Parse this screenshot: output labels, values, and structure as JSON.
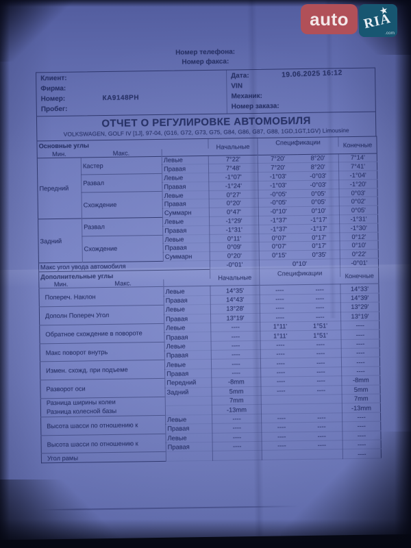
{
  "watermark": {
    "auto_text": "auto",
    "ria_text": "RIA",
    "com_text": ".com",
    "star": "★",
    "auto_bg": "#b15058",
    "ria_bg": "#175671"
  },
  "top_lines": {
    "phone_label": "Номер телефона:",
    "fax_label": "Номер факса:"
  },
  "info": {
    "left": [
      {
        "label": "Клиент:",
        "value": ""
      },
      {
        "label": "Фирма:",
        "value": ""
      },
      {
        "label": "Номер:",
        "value": "КА9148РН"
      },
      {
        "label": "Пробег:",
        "value": ""
      }
    ],
    "right": [
      {
        "label": "Дата:",
        "value": "19.06.2025  16:12"
      },
      {
        "label": "VIN",
        "value": ""
      },
      {
        "label": "Механик:",
        "value": ""
      },
      {
        "label": "Номер заказа:",
        "value": ""
      }
    ]
  },
  "title": "ОТЧЕТ О РЕГУЛИРОВКЕ АВТОМОБИЛЯ",
  "subtitle": "VOLKSWAGEN, GOLF IV [1J], 97-04, (G16, G72, G73, G75, G84, G86, G87, G88, 1GD,1GT,1GV) Limousine",
  "columns": {
    "initial": "Начальные",
    "spec": "Спецификации",
    "min": "Мин.",
    "max": "Макс.",
    "final": "Конечные"
  },
  "main_section": {
    "header": "Основные углы",
    "groups": [
      {
        "name": "Передний",
        "params": [
          {
            "name": "Кастер",
            "rows": [
              {
                "side": "Левые",
                "initial": "7°22'",
                "min": "7°20'",
                "max": "8°20'",
                "final": "7°14'"
              },
              {
                "side": "Правая",
                "initial": "7°48'",
                "min": "7°20'",
                "max": "8°20'",
                "final": "7°41'"
              }
            ]
          },
          {
            "name": "Развал",
            "rows": [
              {
                "side": "Левые",
                "initial": "-1°07'",
                "min": "-1°03'",
                "max": "-0°03'",
                "final": "-1°04'"
              },
              {
                "side": "Правая",
                "initial": "-1°24'",
                "min": "-1°03'",
                "max": "-0°03'",
                "final": "-1°20'"
              }
            ]
          },
          {
            "name": "Схождение",
            "rows": [
              {
                "side": "Левые",
                "initial": "0°27'",
                "min": "-0°05'",
                "max": "0°05'",
                "final": "0°03'"
              },
              {
                "side": "Правая",
                "initial": "0°20'",
                "min": "-0°05'",
                "max": "0°05'",
                "final": "0°02'"
              },
              {
                "side": "Суммарн",
                "initial": "0°47'",
                "min": "-0°10'",
                "max": "0°10'",
                "final": "0°05'"
              }
            ]
          }
        ]
      },
      {
        "name": "Задний",
        "params": [
          {
            "name": "Развал",
            "rows": [
              {
                "side": "Левые",
                "initial": "-1°29'",
                "min": "-1°37'",
                "max": "-1°17'",
                "final": "-1°31'"
              },
              {
                "side": "Правая",
                "initial": "-1°31'",
                "min": "-1°37'",
                "max": "-1°17'",
                "final": "-1°30'"
              }
            ]
          },
          {
            "name": "Схождение",
            "rows": [
              {
                "side": "Левые",
                "initial": "0°11'",
                "min": "0°07'",
                "max": "0°17'",
                "final": "0°12'"
              },
              {
                "side": "Правая",
                "initial": "0°09'",
                "min": "0°07'",
                "max": "0°17'",
                "final": "0°10'"
              },
              {
                "side": "Суммарн",
                "initial": "0°20'",
                "min": "0°15'",
                "max": "0°35'",
                "final": "0°22'"
              }
            ]
          }
        ]
      }
    ],
    "footer": {
      "label": "Макс угол увода автомобиля",
      "initial": "-0°01'",
      "spec": "0°10'",
      "final": "-0°01'"
    }
  },
  "extra_section": {
    "header": "Дополнительные углы",
    "params": [
      {
        "name": "Попереч. Наклон",
        "rows": [
          {
            "side": "Левые",
            "initial": "14°35'",
            "min": "----",
            "max": "----",
            "final": "14°33'"
          },
          {
            "side": "Правая",
            "initial": "14°43'",
            "min": "----",
            "max": "----",
            "final": "14°39'"
          }
        ]
      },
      {
        "name": "Дополн Попереч Угол",
        "rows": [
          {
            "side": "Левые",
            "initial": "13°28'",
            "min": "----",
            "max": "----",
            "final": "13°29'"
          },
          {
            "side": "Правая",
            "initial": "13°19'",
            "min": "----",
            "max": "----",
            "final": "13°19'"
          }
        ]
      },
      {
        "name": "Обратное схождение в повороте",
        "rows": [
          {
            "side": "Левые",
            "initial": "----",
            "min": "1°11'",
            "max": "1°51'",
            "final": "----"
          },
          {
            "side": "Правая",
            "initial": "----",
            "min": "1°11'",
            "max": "1°51'",
            "final": "----"
          }
        ]
      },
      {
        "name": "Макс поворот внутрь",
        "rows": [
          {
            "side": "Левые",
            "initial": "----",
            "min": "----",
            "max": "----",
            "final": "----"
          },
          {
            "side": "Правая",
            "initial": "----",
            "min": "----",
            "max": "----",
            "final": "----"
          }
        ]
      },
      {
        "name": "Измен. схожд. при подъеме",
        "rows": [
          {
            "side": "Левые",
            "initial": "----",
            "min": "----",
            "max": "----",
            "final": "----"
          },
          {
            "side": "Правая",
            "initial": "----",
            "min": "----",
            "max": "----",
            "final": "----"
          }
        ]
      },
      {
        "name": "Разворот оси",
        "rows": [
          {
            "side": "Передний",
            "initial": "-8mm",
            "min": "----",
            "max": "----",
            "final": "-8mm"
          },
          {
            "side": "Задний",
            "initial": "5mm",
            "min": "----",
            "max": "----",
            "final": "5mm"
          }
        ]
      },
      {
        "name": "",
        "rows": [
          {
            "label": "Разница ширины колеи",
            "side": "",
            "initial": "7mm",
            "min": "",
            "max": "",
            "final": "7mm"
          },
          {
            "label": "Разница колесной базы",
            "side": "",
            "initial": "-13mm",
            "min": "",
            "max": "",
            "final": "-13mm"
          }
        ]
      },
      {
        "name": "Высота шасси по отношению к",
        "rows": [
          {
            "side": "Левые",
            "initial": "----",
            "min": "----",
            "max": "----",
            "final": "----"
          },
          {
            "side": "Правая",
            "initial": "----",
            "min": "----",
            "max": "----",
            "final": "----"
          }
        ]
      },
      {
        "name": "Высота шасси по отношению к",
        "rows": [
          {
            "side": "Левые",
            "initial": "----",
            "min": "----",
            "max": "----",
            "final": "----"
          },
          {
            "side": "Правая",
            "initial": "----",
            "min": "----",
            "max": "----",
            "final": "----"
          }
        ]
      },
      {
        "name": "Угол рамы",
        "rows": [
          {
            "side": "",
            "initial": "",
            "min": "",
            "max": "",
            "final": "----"
          }
        ]
      }
    ]
  }
}
